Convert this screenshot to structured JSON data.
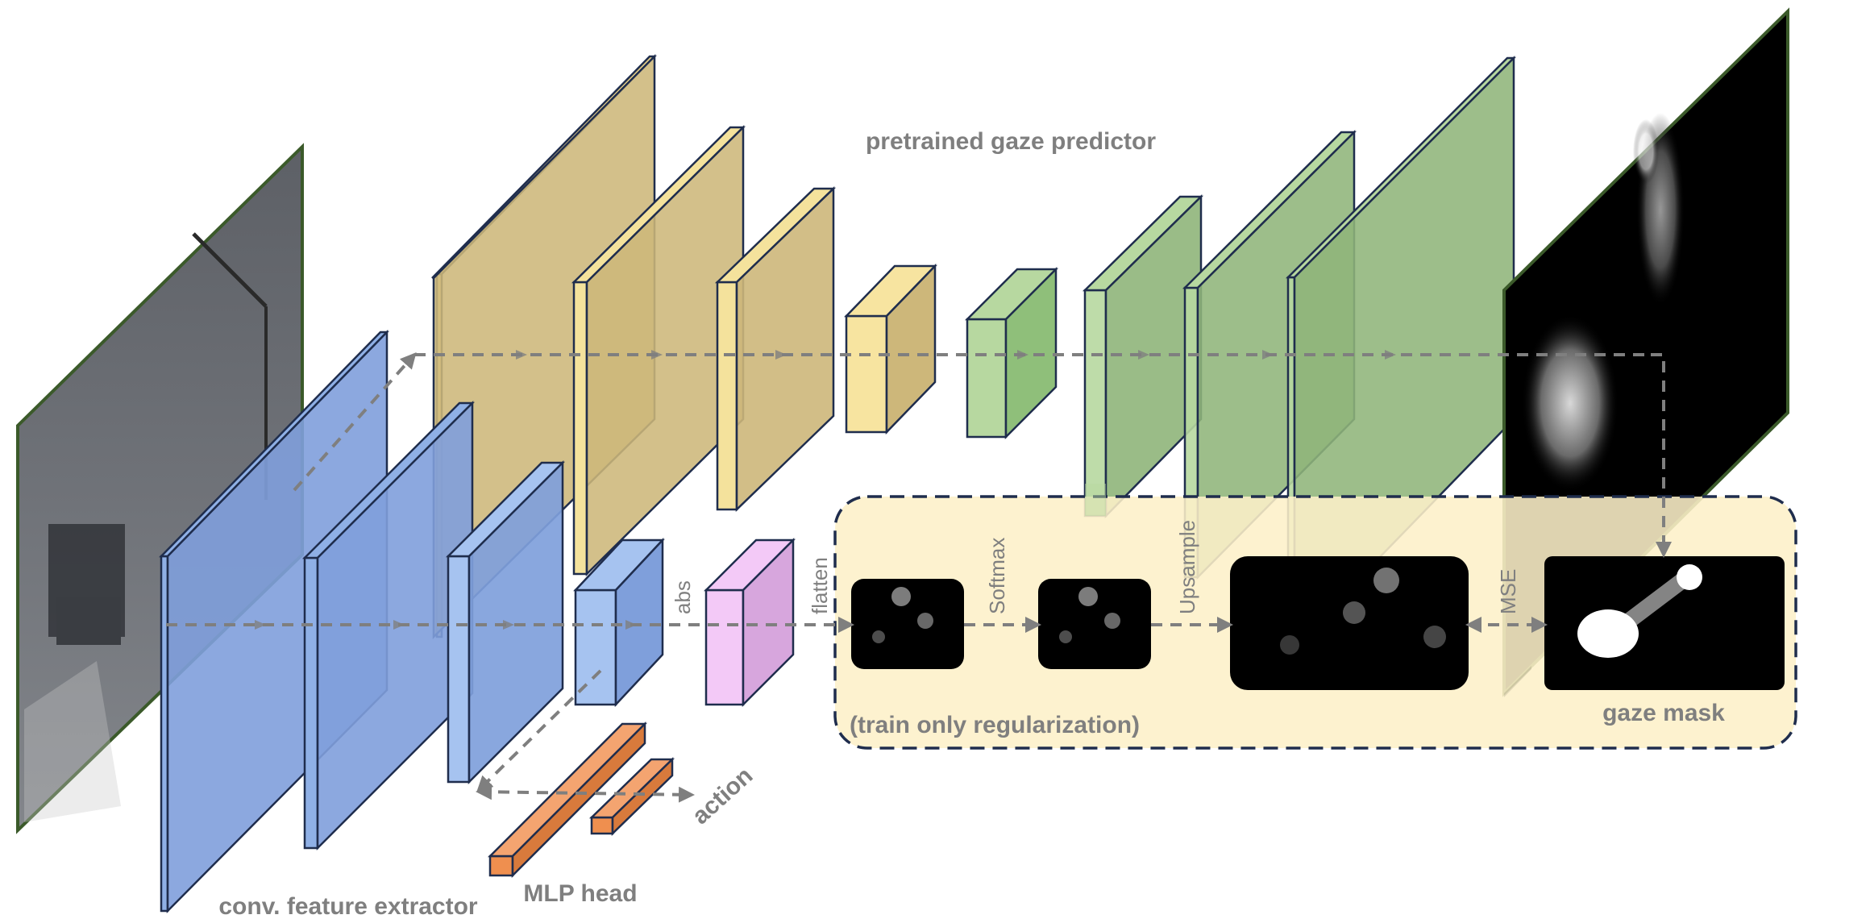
{
  "labels": {
    "gaze_predictor": "pretrained gaze predictor",
    "feature_extractor": "conv. feature extractor",
    "mlp_head": "MLP head",
    "action": "action",
    "train_only": "(train only regularization)",
    "gaze_mask": "gaze mask",
    "abs": "abs",
    "flatten": "flatten",
    "softmax": "Softmax",
    "upsample": "Upsample",
    "mse": "MSE"
  },
  "colors": {
    "blue": "#7f9fdb",
    "yellow": "#f2d98a",
    "tan": "#cfb97a",
    "green": "#8fbf7a",
    "pink": "#e6b3ec",
    "orange": "#ef8f4f",
    "panel": "#fdf0c8",
    "outline": "#1f2d4d",
    "arrow": "#7f7f7f"
  }
}
